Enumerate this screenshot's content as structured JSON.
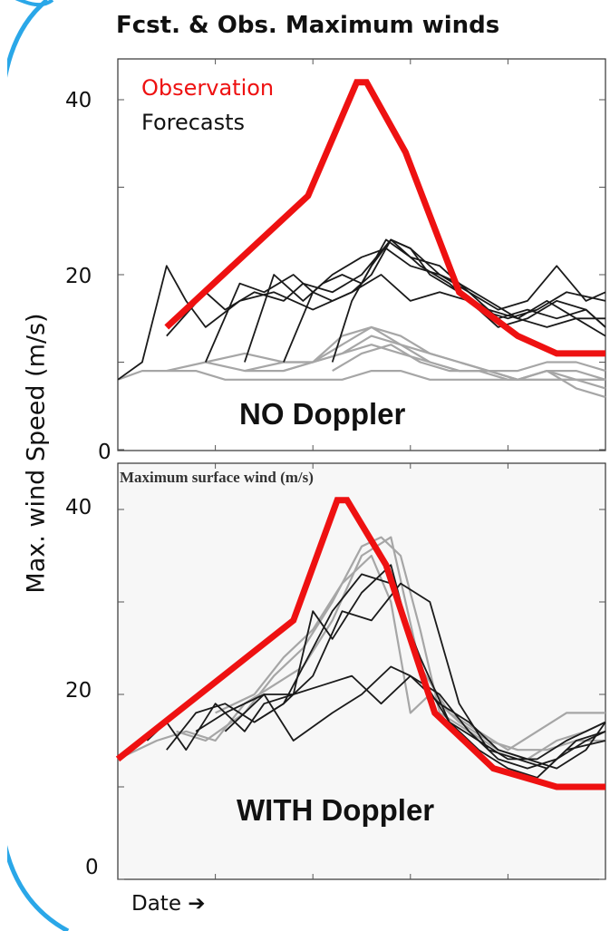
{
  "title": "Fcst. & Obs. Maximum winds",
  "ylabel": "Max. wind Speed (m/s)",
  "xlabel": "Date ➔",
  "colors": {
    "observation": "#ee1111",
    "forecast_dark": "#1a1a1a",
    "forecast_light": "#a6a6a6",
    "accent_arc": "#2aa7e8"
  },
  "chart_data": [
    {
      "type": "line",
      "annotation": "NO Doppler",
      "legend": {
        "observation_label": "Observation",
        "forecast_label": "Forecasts"
      },
      "yticks": [
        "0",
        "20",
        "40"
      ],
      "ylim": [
        0,
        43
      ],
      "xlim": [
        0,
        100
      ],
      "observation": {
        "x": [
          10,
          39,
          49,
          51,
          59,
          70,
          82,
          90,
          100
        ],
        "y": [
          14,
          29,
          42,
          42,
          34,
          18,
          13,
          11,
          11
        ]
      },
      "forecasts": [
        {
          "shade": "dark",
          "x": [
            0,
            5,
            10,
            14,
            18,
            25,
            32,
            40,
            48,
            54,
            60,
            66,
            72,
            78,
            84,
            90,
            96,
            100
          ],
          "y": [
            8,
            10,
            21,
            17,
            14,
            17,
            18,
            16,
            18,
            20,
            17,
            18,
            17,
            14,
            15,
            17,
            16,
            14
          ]
        },
        {
          "shade": "dark",
          "x": [
            10,
            18,
            22,
            28,
            34,
            38,
            44,
            50,
            56,
            62,
            68,
            74,
            80,
            86,
            92,
            100
          ],
          "y": [
            13,
            18,
            16,
            18,
            17,
            19,
            18,
            20,
            24,
            21,
            19,
            16,
            15,
            16,
            18,
            17
          ]
        },
        {
          "shade": "dark",
          "x": [
            18,
            25,
            30,
            36,
            40,
            44,
            50,
            55,
            60,
            66,
            72,
            78,
            84,
            90,
            96,
            100
          ],
          "y": [
            10,
            19,
            18,
            20,
            18,
            20,
            22,
            23,
            21,
            20,
            18,
            15,
            16,
            15,
            16,
            14
          ]
        },
        {
          "shade": "dark",
          "x": [
            26,
            32,
            38,
            42,
            46,
            50,
            55,
            60,
            66,
            72,
            78,
            84,
            90,
            96,
            100
          ],
          "y": [
            10,
            20,
            17,
            19,
            20,
            19,
            24,
            22,
            21,
            18,
            16,
            17,
            21,
            17,
            18
          ]
        },
        {
          "shade": "dark",
          "x": [
            34,
            40,
            44,
            48,
            52,
            56,
            60,
            66,
            70,
            76,
            82,
            88,
            94,
            100
          ],
          "y": [
            10,
            18,
            17,
            18,
            20,
            24,
            23,
            20,
            19,
            17,
            15,
            17,
            15,
            15
          ]
        },
        {
          "shade": "dark",
          "x": [
            44,
            48,
            52,
            56,
            60,
            64,
            70,
            76,
            82,
            88,
            94,
            100
          ],
          "y": [
            10,
            17,
            21,
            24,
            23,
            20,
            18,
            16,
            15,
            14,
            15,
            13
          ]
        },
        {
          "shade": "light",
          "x": [
            0,
            5,
            10,
            16,
            22,
            28,
            34,
            40,
            46,
            52,
            58,
            64,
            70,
            76,
            82,
            88,
            94,
            100
          ],
          "y": [
            8,
            9,
            9,
            9,
            8,
            8,
            8,
            8,
            8,
            9,
            9,
            8,
            8,
            8,
            8,
            8,
            8,
            8
          ]
        },
        {
          "shade": "light",
          "x": [
            10,
            18,
            26,
            34,
            40,
            46,
            52,
            58,
            64,
            70,
            76,
            82,
            88,
            94,
            100
          ],
          "y": [
            9,
            10,
            9,
            9,
            10,
            13,
            14,
            12,
            10,
            9,
            9,
            8,
            9,
            9,
            8
          ]
        },
        {
          "shade": "light",
          "x": [
            18,
            26,
            34,
            40,
            46,
            52,
            58,
            64,
            70,
            76,
            82,
            88,
            94,
            100
          ],
          "y": [
            10,
            11,
            10,
            10,
            12,
            14,
            13,
            11,
            10,
            9,
            9,
            10,
            10,
            9
          ]
        },
        {
          "shade": "light",
          "x": [
            26,
            34,
            40,
            46,
            52,
            58,
            64,
            70,
            76,
            82,
            88,
            94,
            100
          ],
          "y": [
            9,
            10,
            10,
            11,
            13,
            12,
            11,
            10,
            9,
            8,
            9,
            8,
            7
          ]
        },
        {
          "shade": "light",
          "x": [
            34,
            40,
            46,
            52,
            58,
            64,
            70,
            76,
            82,
            88,
            94,
            100
          ],
          "y": [
            9,
            10,
            11,
            12,
            11,
            10,
            9,
            9,
            8,
            9,
            7,
            6
          ]
        },
        {
          "shade": "light",
          "x": [
            44,
            50,
            56,
            62,
            68,
            74,
            80,
            86,
            92,
            100
          ],
          "y": [
            9,
            11,
            12,
            10,
            9,
            9,
            8,
            8,
            8,
            8
          ]
        }
      ]
    },
    {
      "type": "line",
      "annotation": "WITH Doppler",
      "inner_title": "Maximum surface wind (m/s)",
      "yticks": [
        "0",
        "20",
        "40"
      ],
      "ylim": [
        0,
        43
      ],
      "xlim": [
        0,
        100
      ],
      "observation": {
        "x": [
          0,
          36,
          45,
          47,
          55,
          65,
          77,
          90,
          100
        ],
        "y": [
          13,
          28,
          41,
          41,
          34,
          18,
          12,
          10,
          10
        ]
      },
      "forecasts": [
        {
          "shade": "dark",
          "x": [
            6,
            10,
            14,
            20,
            26,
            30,
            36,
            42,
            48,
            54,
            60,
            66,
            72,
            78,
            84,
            90,
            96,
            100
          ],
          "y": [
            15,
            17,
            14,
            19,
            16,
            19,
            20,
            21,
            22,
            19,
            22,
            20,
            16,
            13,
            12,
            13,
            15,
            16
          ]
        },
        {
          "shade": "dark",
          "x": [
            10,
            16,
            22,
            28,
            34,
            40,
            44,
            50,
            56,
            62,
            68,
            74,
            80,
            86,
            92,
            100
          ],
          "y": [
            14,
            18,
            19,
            17,
            19,
            25,
            29,
            33,
            32,
            24,
            17,
            14,
            12,
            11,
            14,
            15
          ]
        },
        {
          "shade": "dark",
          "x": [
            16,
            22,
            30,
            36,
            40,
            44,
            50,
            56,
            62,
            68,
            74,
            80,
            86,
            92,
            100
          ],
          "y": [
            16,
            18,
            20,
            20,
            29,
            26,
            31,
            34,
            22,
            17,
            15,
            13,
            13,
            15,
            17
          ]
        },
        {
          "shade": "dark",
          "x": [
            22,
            30,
            36,
            44,
            50,
            56,
            60,
            66,
            72,
            78,
            84,
            90,
            96,
            100
          ],
          "y": [
            16,
            20,
            15,
            18,
            20,
            23,
            22,
            19,
            17,
            14,
            13,
            12,
            14,
            17
          ]
        },
        {
          "shade": "dark",
          "x": [
            28,
            34,
            40,
            46,
            52,
            58,
            64,
            70,
            76,
            82,
            88,
            94,
            100
          ],
          "y": [
            17,
            19,
            22,
            29,
            28,
            32,
            30,
            19,
            14,
            13,
            12,
            15,
            16
          ]
        },
        {
          "shade": "light",
          "x": [
            0,
            8,
            14,
            20,
            26,
            32,
            38,
            44,
            50,
            56,
            62,
            68,
            74,
            80,
            86,
            92,
            100
          ],
          "y": [
            13,
            15,
            16,
            15,
            19,
            21,
            23,
            28,
            35,
            37,
            23,
            18,
            16,
            14,
            16,
            18,
            18
          ]
        },
        {
          "shade": "light",
          "x": [
            12,
            18,
            26,
            32,
            38,
            44,
            50,
            54,
            58,
            62,
            66,
            72,
            78,
            84,
            90,
            96,
            100
          ],
          "y": [
            16,
            15,
            18,
            22,
            25,
            30,
            36,
            37,
            35,
            27,
            18,
            16,
            14,
            13,
            15,
            16,
            17
          ]
        },
        {
          "shade": "light",
          "x": [
            20,
            28,
            34,
            40,
            46,
            52,
            56,
            60,
            64,
            70,
            76,
            82,
            88,
            94,
            100
          ],
          "y": [
            18,
            20,
            24,
            27,
            32,
            35,
            30,
            18,
            20,
            17,
            15,
            14,
            14,
            15,
            15
          ]
        }
      ]
    }
  ]
}
